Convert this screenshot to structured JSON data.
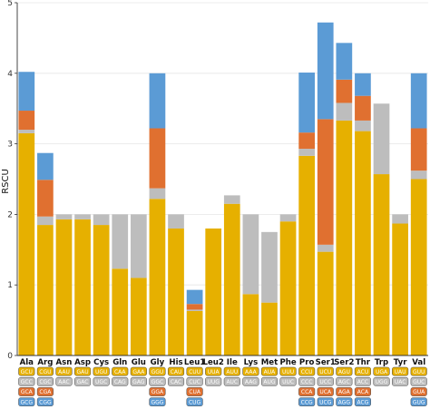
{
  "chart_data": {
    "type": "bar",
    "stacked": true,
    "ylabel": "RSCU",
    "xlabel": "",
    "ylim": [
      0,
      5
    ],
    "yticks": [
      0,
      1,
      2,
      3,
      4,
      5
    ],
    "grid": true,
    "legend": "codon boxes below each bar",
    "series_colors": [
      "#E6B000",
      "#BDBDBD",
      "#E07030",
      "#5B9BD5"
    ],
    "categories": [
      "Ala",
      "Arg",
      "Asn",
      "Asp",
      "Cys",
      "Gln",
      "Glu",
      "Gly",
      "His",
      "Leu1",
      "Leu2",
      "Ile",
      "Lys",
      "Met",
      "Phe",
      "Pro",
      "Ser1",
      "Ser2",
      "Thr",
      "Trp",
      "Tyr",
      "Val"
    ],
    "bars": [
      {
        "segments": [
          3.15,
          0.05,
          0.27,
          0.55
        ],
        "codons": [
          "GCU",
          "GCC",
          "GCA",
          "GCG"
        ]
      },
      {
        "segments": [
          1.85,
          0.12,
          0.52,
          0.38
        ],
        "codons": [
          "CGU",
          "CGC",
          "CGA",
          "CGG"
        ]
      },
      {
        "segments": [
          1.93,
          0.07
        ],
        "codons": [
          "AAU",
          "AAC"
        ]
      },
      {
        "segments": [
          1.93,
          0.07
        ],
        "codons": [
          "GAU",
          "GAC"
        ]
      },
      {
        "segments": [
          1.85,
          0.15
        ],
        "codons": [
          "UGU",
          "UGC"
        ]
      },
      {
        "segments": [
          1.23,
          0.77
        ],
        "codons": [
          "CAA",
          "CAG"
        ]
      },
      {
        "segments": [
          1.1,
          0.9
        ],
        "codons": [
          "GAA",
          "GAG"
        ]
      },
      {
        "segments": [
          2.22,
          0.15,
          0.85,
          0.78
        ],
        "codons": [
          "GGU",
          "GGC",
          "GGA",
          "GGG"
        ]
      },
      {
        "segments": [
          1.8,
          0.2
        ],
        "codons": [
          "CAU",
          "CAC"
        ]
      },
      {
        "segments": [
          0.63,
          0.02,
          0.08,
          0.2
        ],
        "codons": [
          "CUU",
          "CUC",
          "CUA",
          "CUG"
        ]
      },
      {
        "segments": [
          1.8,
          0.0
        ],
        "codons": [
          "UUA",
          "UUG"
        ]
      },
      {
        "segments": [
          2.15,
          0.12
        ],
        "codons": [
          "AUU",
          "AUC"
        ]
      },
      {
        "segments": [
          0.87,
          1.13
        ],
        "codons": [
          "AAA",
          "AAG"
        ]
      },
      {
        "segments": [
          0.75,
          1.0
        ],
        "codons": [
          "AUA",
          "AUG"
        ]
      },
      {
        "segments": [
          1.9,
          0.1
        ],
        "codons": [
          "UUU",
          "UUC"
        ]
      },
      {
        "segments": [
          2.83,
          0.1,
          0.23,
          0.85
        ],
        "codons": [
          "CCU",
          "CCC",
          "CCA",
          "CCG"
        ]
      },
      {
        "segments": [
          1.47,
          0.1,
          1.78,
          1.37
        ],
        "codons": [
          "UCU",
          "UCC",
          "UCA",
          "UCG"
        ]
      },
      {
        "segments": [
          3.33,
          0.25,
          0.33,
          0.52
        ],
        "codons": [
          "AGU",
          "AGC",
          "AGA",
          "AGG"
        ]
      },
      {
        "segments": [
          3.18,
          0.15,
          0.35,
          0.32
        ],
        "codons": [
          "ACU",
          "ACC",
          "ACA",
          "ACG"
        ]
      },
      {
        "segments": [
          2.57,
          1.0
        ],
        "codons": [
          "UGA",
          "UGG"
        ]
      },
      {
        "segments": [
          1.87,
          0.13
        ],
        "codons": [
          "UAU",
          "UAC"
        ]
      },
      {
        "segments": [
          2.5,
          0.12,
          0.6,
          0.78
        ],
        "codons": [
          "GUU",
          "GUC",
          "GUA",
          "GUG"
        ]
      }
    ]
  }
}
